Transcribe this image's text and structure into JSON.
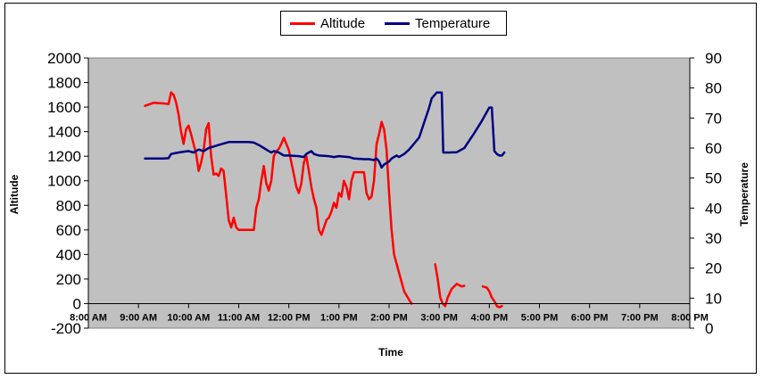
{
  "chart_data": {
    "type": "line",
    "xlabel": "Time",
    "ylabel_left": "Altitude",
    "ylabel_right": "Temperature",
    "x_ticks": [
      "8:00 AM",
      "9:00 AM",
      "10:00 AM",
      "11:00 AM",
      "12:00 PM",
      "1:00 PM",
      "2:00 PM",
      "3:00 PM",
      "4:00 PM",
      "5:00 PM",
      "6:00 PM",
      "7:00 PM",
      "8:00 PM"
    ],
    "x_range_hours": [
      8,
      20
    ],
    "y_left_ticks": [
      "-200",
      "0",
      "200",
      "400",
      "600",
      "800",
      "1000",
      "1200",
      "1400",
      "1600",
      "1800",
      "2000"
    ],
    "y_left_range": [
      -200,
      2000
    ],
    "y_right_ticks": [
      "0",
      "10",
      "20",
      "30",
      "40",
      "50",
      "60",
      "70",
      "80",
      "90"
    ],
    "y_right_range": [
      0,
      90
    ],
    "legend_position": "top-center",
    "plot_background": "#c0c0c0",
    "gridlines": false,
    "series": [
      {
        "name": "Altitude",
        "axis": "left",
        "color": "#ff0000",
        "segments": [
          [
            [
              9.13,
              1610
            ],
            [
              9.3,
              1635
            ],
            [
              9.5,
              1630
            ],
            [
              9.6,
              1625
            ],
            [
              9.65,
              1720
            ],
            [
              9.7,
              1700
            ],
            [
              9.75,
              1640
            ],
            [
              9.8,
              1540
            ],
            [
              9.85,
              1400
            ],
            [
              9.9,
              1300
            ],
            [
              9.95,
              1420
            ],
            [
              10.0,
              1450
            ],
            [
              10.05,
              1380
            ],
            [
              10.1,
              1300
            ],
            [
              10.15,
              1220
            ],
            [
              10.2,
              1080
            ],
            [
              10.25,
              1150
            ],
            [
              10.3,
              1250
            ],
            [
              10.35,
              1420
            ],
            [
              10.4,
              1470
            ],
            [
              10.45,
              1200
            ],
            [
              10.5,
              1050
            ],
            [
              10.55,
              1060
            ],
            [
              10.6,
              1040
            ],
            [
              10.65,
              1100
            ],
            [
              10.7,
              1080
            ],
            [
              10.75,
              880
            ],
            [
              10.8,
              680
            ],
            [
              10.85,
              620
            ],
            [
              10.9,
              700
            ],
            [
              10.95,
              620
            ],
            [
              11.0,
              600
            ],
            [
              11.1,
              600
            ],
            [
              11.2,
              600
            ],
            [
              11.3,
              600
            ],
            [
              11.35,
              780
            ],
            [
              11.4,
              850
            ],
            [
              11.45,
              1000
            ],
            [
              11.5,
              1120
            ],
            [
              11.55,
              980
            ],
            [
              11.6,
              920
            ],
            [
              11.65,
              1000
            ],
            [
              11.7,
              1200
            ],
            [
              11.75,
              1240
            ],
            [
              11.8,
              1260
            ],
            [
              11.85,
              1300
            ],
            [
              11.9,
              1350
            ],
            [
              11.95,
              1300
            ],
            [
              12.0,
              1250
            ],
            [
              12.05,
              1150
            ],
            [
              12.1,
              1050
            ],
            [
              12.15,
              950
            ],
            [
              12.2,
              900
            ],
            [
              12.25,
              980
            ],
            [
              12.3,
              1150
            ],
            [
              12.35,
              1200
            ],
            [
              12.4,
              1080
            ],
            [
              12.45,
              950
            ],
            [
              12.5,
              850
            ],
            [
              12.55,
              780
            ],
            [
              12.6,
              600
            ],
            [
              12.65,
              560
            ],
            [
              12.7,
              620
            ],
            [
              12.75,
              680
            ],
            [
              12.8,
              700
            ],
            [
              12.85,
              750
            ],
            [
              12.9,
              820
            ],
            [
              12.95,
              780
            ],
            [
              13.0,
              900
            ],
            [
              13.05,
              870
            ],
            [
              13.1,
              1000
            ],
            [
              13.15,
              950
            ],
            [
              13.2,
              850
            ],
            [
              13.25,
              1000
            ],
            [
              13.3,
              1070
            ],
            [
              13.4,
              1070
            ],
            [
              13.5,
              1070
            ],
            [
              13.55,
              900
            ],
            [
              13.6,
              850
            ],
            [
              13.65,
              870
            ],
            [
              13.7,
              1000
            ],
            [
              13.75,
              1300
            ],
            [
              13.8,
              1380
            ],
            [
              13.85,
              1480
            ],
            [
              13.9,
              1420
            ],
            [
              13.95,
              1250
            ],
            [
              14.0,
              900
            ],
            [
              14.05,
              600
            ],
            [
              14.1,
              400
            ],
            [
              14.2,
              250
            ],
            [
              14.3,
              100
            ],
            [
              14.4,
              30
            ],
            [
              14.45,
              0
            ]
          ],
          [
            [
              14.92,
              320
            ],
            [
              14.97,
              200
            ],
            [
              15.02,
              50
            ],
            [
              15.07,
              0
            ],
            [
              15.12,
              -20
            ],
            [
              15.17,
              50
            ],
            [
              15.25,
              120
            ],
            [
              15.35,
              160
            ],
            [
              15.45,
              140
            ],
            [
              15.5,
              145
            ]
          ],
          [
            [
              15.87,
              140
            ],
            [
              15.95,
              130
            ],
            [
              16.0,
              100
            ],
            [
              16.05,
              50
            ],
            [
              16.1,
              20
            ],
            [
              16.15,
              -20
            ],
            [
              16.2,
              -30
            ],
            [
              16.25,
              -20
            ]
          ]
        ]
      },
      {
        "name": "Temperature",
        "axis": "right",
        "color": "#000080",
        "segments": [
          [
            [
              9.13,
              56.5
            ],
            [
              9.3,
              56.5
            ],
            [
              9.5,
              56.5
            ],
            [
              9.6,
              56.6
            ],
            [
              9.65,
              58.0
            ],
            [
              9.8,
              58.5
            ],
            [
              10.0,
              59.0
            ],
            [
              10.1,
              58.5
            ],
            [
              10.2,
              59.5
            ],
            [
              10.3,
              59.0
            ],
            [
              10.4,
              60.0
            ],
            [
              10.5,
              60.5
            ],
            [
              10.6,
              61.0
            ],
            [
              10.7,
              61.5
            ],
            [
              10.8,
              62.0
            ],
            [
              11.0,
              62.0
            ],
            [
              11.2,
              62.0
            ],
            [
              11.3,
              61.8
            ],
            [
              11.4,
              61.0
            ],
            [
              11.5,
              60.0
            ],
            [
              11.6,
              59.0
            ],
            [
              11.65,
              58.5
            ],
            [
              11.7,
              59.0
            ],
            [
              11.8,
              58.5
            ],
            [
              11.9,
              57.5
            ],
            [
              12.0,
              57.5
            ],
            [
              12.2,
              57.3
            ],
            [
              12.3,
              57.0
            ],
            [
              12.35,
              58.0
            ],
            [
              12.4,
              58.5
            ],
            [
              12.45,
              59.0
            ],
            [
              12.5,
              58.0
            ],
            [
              12.6,
              57.5
            ],
            [
              12.8,
              57.3
            ],
            [
              12.9,
              57.0
            ],
            [
              13.0,
              57.3
            ],
            [
              13.2,
              57.0
            ],
            [
              13.3,
              56.5
            ],
            [
              13.5,
              56.3
            ],
            [
              13.6,
              56.3
            ],
            [
              13.7,
              56.0
            ],
            [
              13.75,
              56.5
            ],
            [
              13.8,
              55.5
            ],
            [
              13.85,
              53.5
            ],
            [
              13.9,
              54.5
            ],
            [
              13.95,
              55.0
            ],
            [
              14.0,
              55.5
            ],
            [
              14.05,
              56.5
            ],
            [
              14.1,
              57.0
            ],
            [
              14.15,
              57.5
            ],
            [
              14.2,
              57.0
            ],
            [
              14.3,
              58.0
            ],
            [
              14.4,
              59.5
            ],
            [
              14.6,
              63.5
            ],
            [
              14.7,
              68.5
            ],
            [
              14.8,
              73.5
            ],
            [
              14.85,
              76.5
            ],
            [
              14.95,
              78.5
            ],
            [
              15.0,
              78.5
            ],
            [
              15.05,
              78.5
            ],
            [
              15.08,
              58.5
            ],
            [
              15.2,
              58.5
            ],
            [
              15.35,
              58.6
            ],
            [
              15.5,
              60.0
            ],
            [
              15.7,
              65.0
            ],
            [
              15.85,
              69.0
            ],
            [
              15.95,
              72.0
            ],
            [
              16.0,
              73.5
            ],
            [
              16.05,
              73.5
            ],
            [
              16.1,
              59.0
            ],
            [
              16.15,
              58.0
            ],
            [
              16.2,
              57.5
            ],
            [
              16.25,
              57.5
            ],
            [
              16.3,
              58.5
            ]
          ]
        ]
      }
    ]
  }
}
